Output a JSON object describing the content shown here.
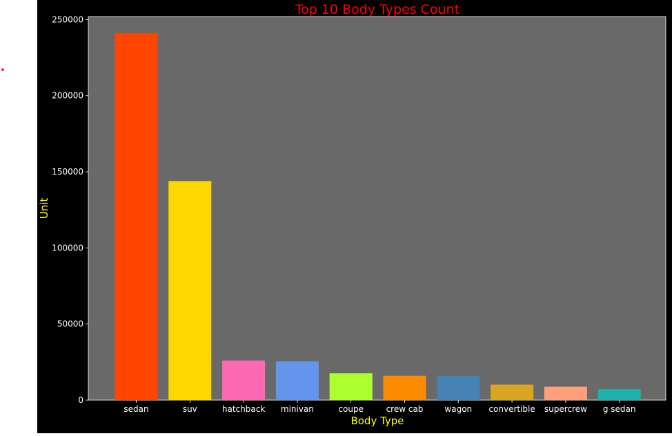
{
  "chart_data": {
    "type": "bar",
    "title": "Top 10 Body Types Count",
    "xlabel": "Body Type",
    "ylabel": "Unit",
    "categories": [
      "sedan",
      "suv",
      "hatchback",
      "minivan",
      "coupe",
      "crew cab",
      "wagon",
      "convertible",
      "supercrew",
      "g sedan"
    ],
    "values": [
      241000,
      143900,
      26000,
      25500,
      17600,
      16000,
      15900,
      10200,
      8800,
      7200
    ],
    "colors": [
      "#FF4500",
      "#FFD700",
      "#FF69B4",
      "#6495ED",
      "#ADFF2F",
      "#FF8C00",
      "#4682B4",
      "#DAA520",
      "#FFA07A",
      "#20B2AA"
    ],
    "yticks": [
      0,
      50000,
      100000,
      150000,
      200000,
      250000
    ],
    "ylim": [
      0,
      252000
    ],
    "grid": false,
    "style": {
      "figure_background": "#000000",
      "axes_background": "#696969",
      "title_color": "#FF0000",
      "label_color": "#FFFF00",
      "tick_color": "#FFFFFF"
    }
  }
}
